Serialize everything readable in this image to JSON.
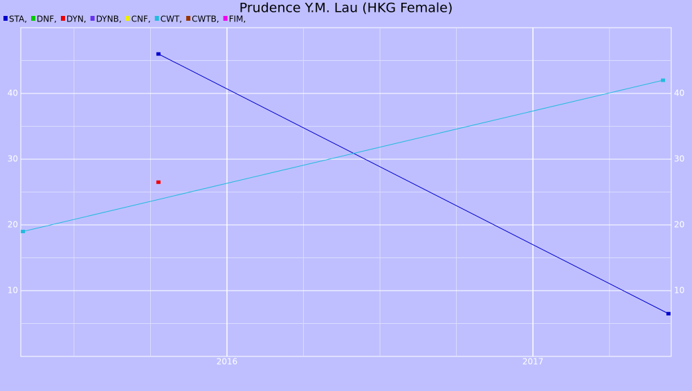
{
  "chart_data": {
    "type": "line",
    "title": "Prudence Y.M. Lau (HKG Female)",
    "xlim": [
      2015.326,
      2017.452
    ],
    "xticks": [
      2016,
      2017
    ],
    "xminorticks": [
      2015.5,
      2015.75,
      2016.25,
      2016.5,
      2016.75,
      2017.25
    ],
    "ylim": [
      0,
      50
    ],
    "yticks": [
      10,
      20,
      30,
      40
    ],
    "yminorticks": [
      5,
      15,
      25,
      35,
      45
    ],
    "grid": true,
    "legend": "top-left",
    "series": [
      {
        "name": "STA,",
        "color": "#0000cc",
        "x": [
          2015.776,
          2017.443
        ],
        "values": [
          46,
          6.5
        ]
      },
      {
        "name": "DNF,",
        "color": "#00cc00",
        "x": [],
        "values": []
      },
      {
        "name": "DYN,",
        "color": "#ee0000",
        "x": [
          2015.776
        ],
        "values": [
          26.5
        ]
      },
      {
        "name": "DYNB,",
        "color": "#6633ee",
        "x": [],
        "values": []
      },
      {
        "name": "CNF,",
        "color": "#eeee00",
        "x": [],
        "values": []
      },
      {
        "name": "CWT,",
        "color": "#22bbdd",
        "x": [
          2015.333,
          2017.425
        ],
        "values": [
          19,
          42
        ]
      },
      {
        "name": "CWTB,",
        "color": "#993300",
        "x": [],
        "values": []
      },
      {
        "name": "FIM,",
        "color": "#ee00ee",
        "x": [],
        "values": []
      }
    ]
  }
}
